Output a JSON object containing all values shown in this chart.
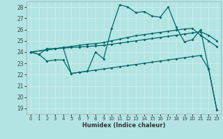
{
  "xlabel": "Humidex (Indice chaleur)",
  "bg_color": "#b2e4e4",
  "grid_color": "#c8e8e8",
  "line_color": "#006666",
  "xlim": [
    -0.5,
    23.5
  ],
  "ylim": [
    18.5,
    28.5
  ],
  "yticks": [
    19,
    20,
    21,
    22,
    23,
    24,
    25,
    26,
    27,
    28
  ],
  "xticks": [
    0,
    1,
    2,
    3,
    4,
    5,
    6,
    7,
    8,
    9,
    10,
    11,
    12,
    13,
    14,
    15,
    16,
    17,
    18,
    19,
    20,
    21,
    22,
    23
  ],
  "line1_x": [
    0,
    1,
    2,
    3,
    4,
    5,
    6,
    7,
    8,
    9,
    10,
    11,
    12,
    13,
    14,
    15,
    16,
    17,
    18,
    19,
    20,
    21,
    22,
    23
  ],
  "line1_y": [
    24.0,
    23.8,
    24.3,
    24.3,
    24.4,
    22.1,
    22.2,
    22.3,
    24.0,
    23.4,
    26.1,
    28.2,
    28.0,
    27.5,
    27.6,
    27.2,
    27.1,
    28.0,
    26.2,
    24.9,
    25.1,
    26.0,
    22.5,
    18.9
  ],
  "line2_x": [
    0,
    2,
    3,
    4,
    5,
    6,
    7,
    8,
    9,
    10,
    11,
    12,
    13,
    14,
    15,
    16,
    17,
    18,
    19,
    20,
    21,
    22,
    23
  ],
  "line2_y": [
    24.0,
    24.2,
    24.3,
    24.35,
    24.4,
    24.45,
    24.5,
    24.55,
    24.6,
    24.7,
    24.8,
    24.9,
    25.0,
    25.1,
    25.2,
    25.3,
    25.4,
    25.5,
    25.6,
    25.7,
    25.8,
    25.5,
    25.0
  ],
  "line3_x": [
    0,
    2,
    3,
    4,
    5,
    6,
    7,
    8,
    9,
    10,
    11,
    12,
    13,
    14,
    15,
    16,
    17,
    18,
    19,
    20,
    21,
    22,
    23
  ],
  "line3_y": [
    24.0,
    24.2,
    24.3,
    24.4,
    24.5,
    24.6,
    24.7,
    24.75,
    24.85,
    25.0,
    25.15,
    25.3,
    25.45,
    25.55,
    25.65,
    25.75,
    25.85,
    25.95,
    26.05,
    26.1,
    25.5,
    25.0,
    24.5
  ],
  "line4_x": [
    0,
    1,
    2,
    3,
    4,
    5,
    6,
    7,
    8,
    9,
    10,
    11,
    12,
    13,
    14,
    15,
    16,
    17,
    18,
    19,
    20,
    21,
    22,
    23
  ],
  "line4_y": [
    24.0,
    23.8,
    23.2,
    23.3,
    23.3,
    22.1,
    22.2,
    22.3,
    22.4,
    22.5,
    22.6,
    22.7,
    22.8,
    22.9,
    23.0,
    23.1,
    23.2,
    23.3,
    23.4,
    23.5,
    23.6,
    23.7,
    22.5,
    18.9
  ]
}
